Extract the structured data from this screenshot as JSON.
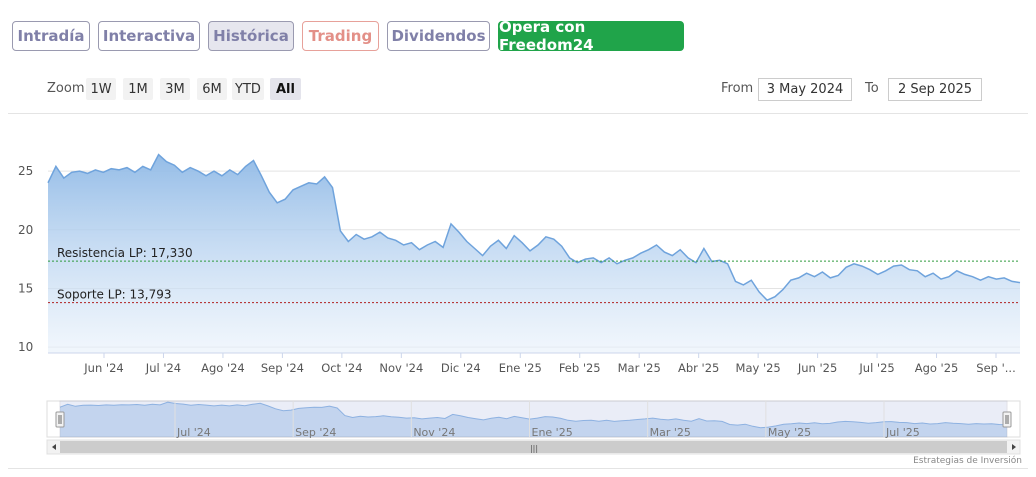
{
  "tabs": [
    {
      "label": "Intradía",
      "style": "normal"
    },
    {
      "label": "Interactiva",
      "style": "normal"
    },
    {
      "label": "Histórica",
      "style": "active"
    },
    {
      "label": "Trading",
      "style": "trading"
    },
    {
      "label": "Dividendos",
      "style": "normal"
    },
    {
      "label": "Opera con Freedom24",
      "style": "cta"
    }
  ],
  "zoom": {
    "label": "Zoom",
    "buttons": [
      "1W",
      "1M",
      "3M",
      "6M",
      "YTD",
      "All"
    ],
    "selected": "All"
  },
  "range": {
    "from_label": "From",
    "from_value": "3 May 2024",
    "to_label": "To",
    "to_value": "2 Sep 2025"
  },
  "footer": "Estrategias de Inversión",
  "colors": {
    "line": "#6fa3dc",
    "resistance": "#2e9a3c",
    "support": "#b02020",
    "cta": "#20a44a"
  },
  "chart_data": {
    "type": "area",
    "title": "",
    "xlabel": "",
    "ylabel": "",
    "ylim": [
      9.5,
      28.5
    ],
    "yticks": [
      10,
      15,
      20,
      25
    ],
    "x_ticks": [
      "Jun '24",
      "Jul '24",
      "Ago '24",
      "Sep '24",
      "Oct '24",
      "Nov '24",
      "Dic '24",
      "Ene '25",
      "Feb '25",
      "Mar '25",
      "Abr '25",
      "May '25",
      "Jun '25",
      "Jul '25",
      "Ago '25",
      "Sep '..."
    ],
    "navigator_ticks": [
      "Jul '24",
      "Sep '24",
      "Nov '24",
      "Ene '25",
      "Mar '25",
      "May '25",
      "Jul '25"
    ],
    "series": [
      {
        "values": [
          24.0,
          25.4,
          24.4,
          24.9,
          25.0,
          24.8,
          25.1,
          24.9,
          25.2,
          25.1,
          25.3,
          24.9,
          25.4,
          25.1,
          26.4,
          25.8,
          25.5,
          24.9,
          25.3,
          25.0,
          24.6,
          25.0,
          24.6,
          25.1,
          24.7,
          25.4,
          25.9,
          24.6,
          23.2,
          22.3,
          22.6,
          23.4,
          23.7,
          24.0,
          23.9,
          24.5,
          23.6,
          19.9,
          19.0,
          19.6,
          19.2,
          19.4,
          19.8,
          19.3,
          19.1,
          18.7,
          18.9,
          18.3,
          18.7,
          19.0,
          18.5,
          20.5,
          19.8,
          19.0,
          18.4,
          17.8,
          18.6,
          19.1,
          18.4,
          19.5,
          18.9,
          18.2,
          18.7,
          19.4,
          19.2,
          18.6,
          17.6,
          17.2,
          17.5,
          17.6,
          17.2,
          17.6,
          17.1,
          17.4,
          17.6,
          18.0,
          18.3,
          18.7,
          18.1,
          17.8,
          18.3,
          17.6,
          17.2,
          18.4,
          17.3,
          17.4,
          17.1,
          15.6,
          15.3,
          15.7,
          14.7,
          14.0,
          14.3,
          14.9,
          15.7,
          15.9,
          16.3,
          16.0,
          16.4,
          15.9,
          16.1,
          16.8,
          17.1,
          16.9,
          16.6,
          16.2,
          16.5,
          16.9,
          17.0,
          16.6,
          16.5,
          16.0,
          16.3,
          15.8,
          16.0,
          16.5,
          16.2,
          16.0,
          15.7,
          16.0,
          15.8,
          15.9,
          15.6,
          15.5
        ]
      }
    ],
    "annotations": [
      {
        "label": "Resistencia LP: 17,330",
        "value": 17.33
      },
      {
        "label": "Soporte LP: 13,793",
        "value": 13.793
      }
    ]
  }
}
